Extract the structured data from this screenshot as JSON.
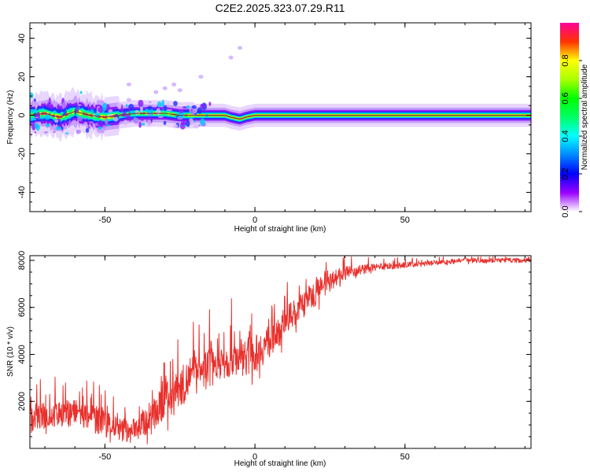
{
  "title": "C2E2.2025.323.07.29.R11",
  "chart_data": [
    {
      "type": "heatmap",
      "xlabel": "Height of straight line (km)",
      "ylabel": "Frequency (Hz)",
      "xlim": [
        -75,
        92
      ],
      "ylim": [
        -50,
        48
      ],
      "xticks": [
        -50,
        0,
        50
      ],
      "yticks": [
        -40,
        -20,
        0,
        20,
        40
      ],
      "colorbar": {
        "label": "Normalized spectral amplitude",
        "range": [
          0,
          1
        ],
        "ticks": [
          "0.0",
          "0.2",
          "0.4",
          "0.6",
          "0.8"
        ],
        "ticks_values": [
          0.0,
          0.2,
          0.4,
          0.6,
          0.8
        ]
      },
      "ridge": [
        [
          -75,
          0
        ],
        [
          -70,
          1
        ],
        [
          -65,
          -1
        ],
        [
          -60,
          2
        ],
        [
          -55,
          0
        ],
        [
          -50,
          -1
        ],
        [
          -45,
          0
        ],
        [
          -40,
          1
        ],
        [
          -35,
          1
        ],
        [
          -30,
          1
        ],
        [
          -25,
          0
        ],
        [
          -20,
          0
        ],
        [
          -15,
          0
        ],
        [
          -10,
          0
        ],
        [
          -8,
          -1
        ],
        [
          -5,
          -2
        ],
        [
          -3,
          -1
        ],
        [
          0,
          0
        ],
        [
          10,
          0
        ],
        [
          20,
          0
        ],
        [
          30,
          0
        ],
        [
          40,
          0
        ],
        [
          50,
          0
        ],
        [
          60,
          0
        ],
        [
          70,
          0
        ],
        [
          80,
          0
        ],
        [
          92,
          0
        ]
      ]
    },
    {
      "type": "line",
      "xlabel": "Height of straight line (km)",
      "ylabel": "SNR (10 * v/v)",
      "xlim": [
        -75,
        92
      ],
      "ylim": [
        0,
        8200
      ],
      "xticks": [
        -50,
        0,
        50
      ],
      "yticks": [
        2000,
        4000,
        6000,
        8000
      ],
      "color": "#e8302c",
      "trend": [
        [
          -75,
          1200
        ],
        [
          -70,
          1400
        ],
        [
          -65,
          1500
        ],
        [
          -60,
          1500
        ],
        [
          -55,
          1300
        ],
        [
          -50,
          1100
        ],
        [
          -45,
          800
        ],
        [
          -42,
          600
        ],
        [
          -40,
          900
        ],
        [
          -35,
          1200
        ],
        [
          -30,
          1900
        ],
        [
          -25,
          2600
        ],
        [
          -20,
          3100
        ],
        [
          -15,
          3500
        ],
        [
          -10,
          3800
        ],
        [
          -5,
          3900
        ],
        [
          0,
          4000
        ],
        [
          5,
          4600
        ],
        [
          10,
          5300
        ],
        [
          15,
          6000
        ],
        [
          20,
          6600
        ],
        [
          25,
          7100
        ],
        [
          30,
          7500
        ],
        [
          40,
          7700
        ],
        [
          50,
          7800
        ],
        [
          60,
          7900
        ],
        [
          70,
          8000
        ],
        [
          80,
          8000
        ],
        [
          92,
          8000
        ]
      ],
      "noise": [
        [
          -75,
          1100
        ],
        [
          -50,
          1200
        ],
        [
          -40,
          900
        ],
        [
          -30,
          1500
        ],
        [
          -20,
          1800
        ],
        [
          -10,
          1700
        ],
        [
          0,
          1600
        ],
        [
          10,
          1400
        ],
        [
          20,
          1100
        ],
        [
          30,
          600
        ],
        [
          40,
          300
        ],
        [
          60,
          200
        ],
        [
          92,
          200
        ]
      ]
    }
  ]
}
